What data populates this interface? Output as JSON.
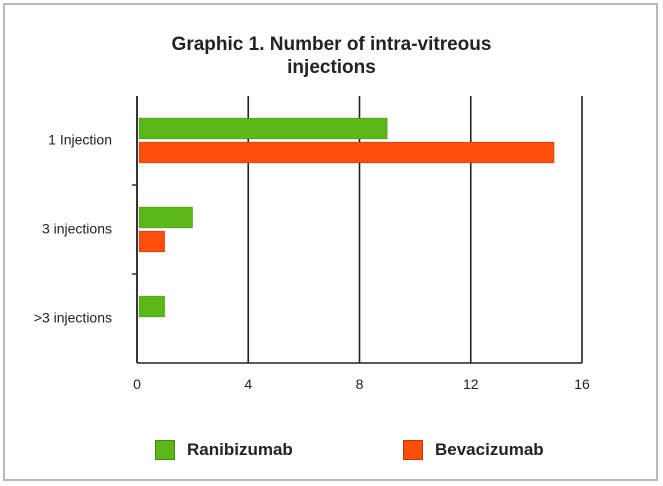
{
  "chart_data": {
    "type": "bar",
    "orientation": "horizontal",
    "title": [
      "Graphic 1. Number of intra-vitreous",
      "injections"
    ],
    "categories": [
      "1 Injection",
      "3 injections",
      ">3 injections"
    ],
    "series": [
      {
        "name": "Ranibizumab",
        "color": "#5bb818",
        "values": [
          9,
          2,
          1
        ]
      },
      {
        "name": "Bevacizumab",
        "color": "#ff4d0a",
        "values": [
          15,
          1,
          0
        ]
      }
    ],
    "xlim": [
      0,
      16
    ],
    "xticks": [
      "0",
      "4",
      "8",
      "12",
      "16"
    ],
    "grid": true,
    "legend": "bottom"
  }
}
